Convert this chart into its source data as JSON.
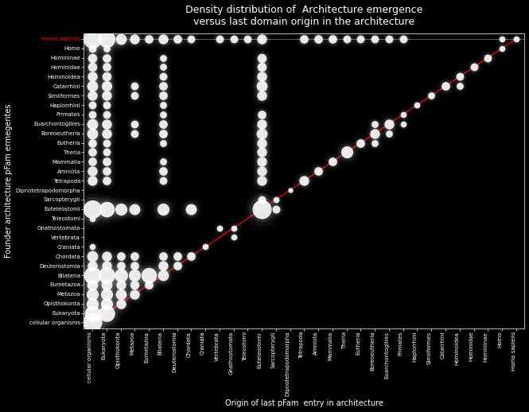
{
  "title": "Density distribution of  Architecture emergence\nversus last domain origin in the architecture",
  "xlabel": "Origin of last pFam  entry in architecture",
  "ylabel": "Founder architecture pFam ermegentes",
  "background_color": "#000000",
  "text_color": "#ffffff",
  "y_labels": [
    "Homo sapiens",
    "Homo",
    "Homininae",
    "Hominidae",
    "Hominoidea",
    "Catarrhini",
    "Simiiformes",
    "Haplorrhini",
    "Primates",
    "Euarchontoglires",
    "Boreoeutheria",
    "Eutheria",
    "Theria",
    "Mammalia",
    "Amniota",
    "Tetrapoda",
    "Dipnotetrapodomorpha",
    "Sarcopterygii",
    "Euteleostomi",
    "Teleostomi",
    "Gnathostomata",
    "Vertebrata",
    "Craniata",
    "Chordata",
    "Deuterostomia",
    "Bilateria",
    "Eumetazoa",
    "Metazoa",
    "Opisthokonta",
    "Eukaryota",
    "cellular organisms"
  ],
  "x_labels": [
    "cellular organisms",
    "Eukaryota",
    "Opisthokonta",
    "Metazoa",
    "Eumetazoa",
    "Bilateria",
    "Deuterostomia",
    "Chordata",
    "Craniata",
    "Vertebrata",
    "Gnathostomata",
    "Teleostomi",
    "Euteleostomi",
    "Sarcopterygii",
    "Dipnotetrapodomorpha",
    "Tetrapoda",
    "Amniota",
    "Mammalia",
    "Theria",
    "Eutheria",
    "Boreoeutheria",
    "Euarchontoglires",
    "Primates",
    "Haplorrhini",
    "Simiiformes",
    "Catarrhini",
    "Hominoidea",
    "Hominidae",
    "Homininae",
    "Homo",
    "Homo sapiens"
  ],
  "dots": [
    {
      "y": "cellular organisms",
      "x": "cellular organisms",
      "size": 300
    },
    {
      "y": "Eukaryota",
      "x": "cellular organisms",
      "size": 200
    },
    {
      "y": "Eukaryota",
      "x": "Eukaryota",
      "size": 220
    },
    {
      "y": "Opisthokonta",
      "x": "cellular organisms",
      "size": 120
    },
    {
      "y": "Opisthokonta",
      "x": "Eukaryota",
      "size": 120
    },
    {
      "y": "Opisthokonta",
      "x": "Opisthokonta",
      "size": 80
    },
    {
      "y": "Metazoa",
      "x": "cellular organisms",
      "size": 120
    },
    {
      "y": "Metazoa",
      "x": "Eukaryota",
      "size": 120
    },
    {
      "y": "Metazoa",
      "x": "Opisthokonta",
      "size": 100
    },
    {
      "y": "Metazoa",
      "x": "Metazoa",
      "size": 80
    },
    {
      "y": "Eumetazoa",
      "x": "cellular organisms",
      "size": 100
    },
    {
      "y": "Eumetazoa",
      "x": "Eukaryota",
      "size": 100
    },
    {
      "y": "Eumetazoa",
      "x": "Opisthokonta",
      "size": 80
    },
    {
      "y": "Eumetazoa",
      "x": "Metazoa",
      "size": 70
    },
    {
      "y": "Eumetazoa",
      "x": "Eumetazoa",
      "size": 60
    },
    {
      "y": "Bilateria",
      "x": "cellular organisms",
      "size": 250
    },
    {
      "y": "Bilateria",
      "x": "Eukaryota",
      "size": 230
    },
    {
      "y": "Bilateria",
      "x": "Opisthokonta",
      "size": 150
    },
    {
      "y": "Bilateria",
      "x": "Metazoa",
      "size": 120
    },
    {
      "y": "Bilateria",
      "x": "Eumetazoa",
      "size": 200
    },
    {
      "y": "Bilateria",
      "x": "Bilateria",
      "size": 100
    },
    {
      "y": "Deuterostomia",
      "x": "cellular organisms",
      "size": 80
    },
    {
      "y": "Deuterostomia",
      "x": "Eukaryota",
      "size": 80
    },
    {
      "y": "Deuterostomia",
      "x": "Opisthokonta",
      "size": 60
    },
    {
      "y": "Deuterostomia",
      "x": "Metazoa",
      "size": 60
    },
    {
      "y": "Deuterostomia",
      "x": "Bilateria",
      "size": 80
    },
    {
      "y": "Deuterostomia",
      "x": "Deuterostomia",
      "size": 60
    },
    {
      "y": "Chordata",
      "x": "cellular organisms",
      "size": 100
    },
    {
      "y": "Chordata",
      "x": "Eukaryota",
      "size": 80
    },
    {
      "y": "Chordata",
      "x": "Opisthokonta",
      "size": 60
    },
    {
      "y": "Chordata",
      "x": "Metazoa",
      "size": 60
    },
    {
      "y": "Chordata",
      "x": "Bilateria",
      "size": 60
    },
    {
      "y": "Chordata",
      "x": "Deuterostomia",
      "size": 60
    },
    {
      "y": "Chordata",
      "x": "Chordata",
      "size": 60
    },
    {
      "y": "Craniata",
      "x": "cellular organisms",
      "size": 30
    },
    {
      "y": "Craniata",
      "x": "Craniata",
      "size": 30
    },
    {
      "y": "Vertebrata",
      "x": "Gnathostomata",
      "size": 30
    },
    {
      "y": "Gnathostomata",
      "x": "Gnathostomata",
      "size": 30
    },
    {
      "y": "Gnathostomata",
      "x": "Vertebrata",
      "size": 30
    },
    {
      "y": "Teleostomi",
      "x": "cellular organisms",
      "size": 30
    },
    {
      "y": "Euteleostomi",
      "x": "cellular organisms",
      "size": 280
    },
    {
      "y": "Euteleostomi",
      "x": "Eukaryota",
      "size": 200
    },
    {
      "y": "Euteleostomi",
      "x": "Opisthokonta",
      "size": 120
    },
    {
      "y": "Euteleostomi",
      "x": "Metazoa",
      "size": 100
    },
    {
      "y": "Euteleostomi",
      "x": "Bilateria",
      "size": 120
    },
    {
      "y": "Euteleostomi",
      "x": "Chordata",
      "size": 100
    },
    {
      "y": "Euteleostomi",
      "x": "Euteleostomi",
      "size": 300
    },
    {
      "y": "Euteleostomi",
      "x": "Sarcopterygii",
      "size": 50
    },
    {
      "y": "Sarcopterygii",
      "x": "Euteleostomi",
      "size": 50
    },
    {
      "y": "Sarcopterygii",
      "x": "Sarcopterygii",
      "size": 30
    },
    {
      "y": "Dipnotetrapodomorpha",
      "x": "Dipnotetrapodomorpha",
      "size": 20
    },
    {
      "y": "Tetrapoda",
      "x": "cellular organisms",
      "size": 80
    },
    {
      "y": "Tetrapoda",
      "x": "Eukaryota",
      "size": 60
    },
    {
      "y": "Tetrapoda",
      "x": "Bilateria",
      "size": 50
    },
    {
      "y": "Tetrapoda",
      "x": "Euteleostomi",
      "size": 80
    },
    {
      "y": "Tetrapoda",
      "x": "Tetrapoda",
      "size": 80
    },
    {
      "y": "Amniota",
      "x": "cellular organisms",
      "size": 80
    },
    {
      "y": "Amniota",
      "x": "Eukaryota",
      "size": 60
    },
    {
      "y": "Amniota",
      "x": "Bilateria",
      "size": 60
    },
    {
      "y": "Amniota",
      "x": "Euteleostomi",
      "size": 80
    },
    {
      "y": "Amniota",
      "x": "Amniota",
      "size": 60
    },
    {
      "y": "Mammalia",
      "x": "cellular organisms",
      "size": 60
    },
    {
      "y": "Mammalia",
      "x": "Eukaryota",
      "size": 60
    },
    {
      "y": "Mammalia",
      "x": "Bilateria",
      "size": 40
    },
    {
      "y": "Mammalia",
      "x": "Euteleostomi",
      "size": 80
    },
    {
      "y": "Mammalia",
      "x": "Mammalia",
      "size": 60
    },
    {
      "y": "Theria",
      "x": "cellular organisms",
      "size": 60
    },
    {
      "y": "Theria",
      "x": "Eukaryota",
      "size": 50
    },
    {
      "y": "Theria",
      "x": "Euteleostomi",
      "size": 80
    },
    {
      "y": "Theria",
      "x": "Theria",
      "size": 120
    },
    {
      "y": "Eutheria",
      "x": "cellular organisms",
      "size": 60
    },
    {
      "y": "Eutheria",
      "x": "Eukaryota",
      "size": 50
    },
    {
      "y": "Eutheria",
      "x": "Bilateria",
      "size": 40
    },
    {
      "y": "Eutheria",
      "x": "Euteleostomi",
      "size": 80
    },
    {
      "y": "Eutheria",
      "x": "Eutheria",
      "size": 60
    },
    {
      "y": "Eutheria",
      "x": "Boreoeutheria",
      "size": 40
    },
    {
      "y": "Boreoeutheria",
      "x": "cellular organisms",
      "size": 100
    },
    {
      "y": "Boreoeutheria",
      "x": "Eukaryota",
      "size": 80
    },
    {
      "y": "Boreoeutheria",
      "x": "Metazoa",
      "size": 50
    },
    {
      "y": "Boreoeutheria",
      "x": "Bilateria",
      "size": 60
    },
    {
      "y": "Boreoeutheria",
      "x": "Euteleostomi",
      "size": 100
    },
    {
      "y": "Boreoeutheria",
      "x": "Boreoeutheria",
      "size": 80
    },
    {
      "y": "Boreoeutheria",
      "x": "Euarchontoglires",
      "size": 40
    },
    {
      "y": "Euarchontoglires",
      "x": "cellular organisms",
      "size": 100
    },
    {
      "y": "Euarchontoglires",
      "x": "Eukaryota",
      "size": 80
    },
    {
      "y": "Euarchontoglires",
      "x": "Metazoa",
      "size": 50
    },
    {
      "y": "Euarchontoglires",
      "x": "Bilateria",
      "size": 60
    },
    {
      "y": "Euarchontoglires",
      "x": "Euteleostomi",
      "size": 80
    },
    {
      "y": "Euarchontoglires",
      "x": "Euarchontoglires",
      "size": 80
    },
    {
      "y": "Euarchontoglires",
      "x": "Boreoeutheria",
      "size": 40
    },
    {
      "y": "Euarchontoglires",
      "x": "Primates",
      "size": 30
    },
    {
      "y": "Primates",
      "x": "cellular organisms",
      "size": 50
    },
    {
      "y": "Primates",
      "x": "Eukaryota",
      "size": 50
    },
    {
      "y": "Primates",
      "x": "Bilateria",
      "size": 40
    },
    {
      "y": "Primates",
      "x": "Euteleostomi",
      "size": 60
    },
    {
      "y": "Primates",
      "x": "Primates",
      "size": 30
    },
    {
      "y": "Haplorrhini",
      "x": "cellular organisms",
      "size": 50
    },
    {
      "y": "Haplorrhini",
      "x": "Eukaryota",
      "size": 50
    },
    {
      "y": "Haplorrhini",
      "x": "Bilateria",
      "size": 40
    },
    {
      "y": "Haplorrhini",
      "x": "Haplorrhini",
      "size": 30
    },
    {
      "y": "Simiiformes",
      "x": "cellular organisms",
      "size": 80
    },
    {
      "y": "Simiiformes",
      "x": "Eukaryota",
      "size": 80
    },
    {
      "y": "Simiiformes",
      "x": "Metazoa",
      "size": 50
    },
    {
      "y": "Simiiformes",
      "x": "Bilateria",
      "size": 60
    },
    {
      "y": "Simiiformes",
      "x": "Euteleostomi",
      "size": 80
    },
    {
      "y": "Simiiformes",
      "x": "Simiiformes",
      "size": 40
    },
    {
      "y": "Catarrhini",
      "x": "cellular organisms",
      "size": 100
    },
    {
      "y": "Catarrhini",
      "x": "Eukaryota",
      "size": 90
    },
    {
      "y": "Catarrhini",
      "x": "Metazoa",
      "size": 50
    },
    {
      "y": "Catarrhini",
      "x": "Bilateria",
      "size": 60
    },
    {
      "y": "Catarrhini",
      "x": "Euteleostomi",
      "size": 100
    },
    {
      "y": "Catarrhini",
      "x": "Catarrhini",
      "size": 60
    },
    {
      "y": "Catarrhini",
      "x": "Hominoidea",
      "size": 40
    },
    {
      "y": "Hominoidea",
      "x": "cellular organisms",
      "size": 80
    },
    {
      "y": "Hominoidea",
      "x": "Eukaryota",
      "size": 70
    },
    {
      "y": "Hominoidea",
      "x": "Bilateria",
      "size": 50
    },
    {
      "y": "Hominoidea",
      "x": "Euteleostomi",
      "size": 80
    },
    {
      "y": "Hominoidea",
      "x": "Hominoidea",
      "size": 50
    },
    {
      "y": "Hominidae",
      "x": "cellular organisms",
      "size": 70
    },
    {
      "y": "Hominidae",
      "x": "Eukaryota",
      "size": 60
    },
    {
      "y": "Hominidae",
      "x": "Bilateria",
      "size": 40
    },
    {
      "y": "Hominidae",
      "x": "Euteleostomi",
      "size": 70
    },
    {
      "y": "Hominidae",
      "x": "Hominidae",
      "size": 50
    },
    {
      "y": "Homininae",
      "x": "cellular organisms",
      "size": 70
    },
    {
      "y": "Homininae",
      "x": "Eukaryota",
      "size": 60
    },
    {
      "y": "Homininae",
      "x": "Bilateria",
      "size": 40
    },
    {
      "y": "Homininae",
      "x": "Euteleostomi",
      "size": 70
    },
    {
      "y": "Homininae",
      "x": "Homininae",
      "size": 50
    },
    {
      "y": "Homo",
      "x": "cellular organisms",
      "size": 50
    },
    {
      "y": "Homo",
      "x": "Eukaryota",
      "size": 40
    },
    {
      "y": "Homo",
      "x": "Homo",
      "size": 30
    },
    {
      "y": "Homo sapiens",
      "x": "cellular organisms",
      "size": 280
    },
    {
      "y": "Homo sapiens",
      "x": "Eukaryota",
      "size": 240
    },
    {
      "y": "Homo sapiens",
      "x": "Opisthokonta",
      "size": 100
    },
    {
      "y": "Homo sapiens",
      "x": "Metazoa",
      "size": 80
    },
    {
      "y": "Homo sapiens",
      "x": "Eumetazoa",
      "size": 60
    },
    {
      "y": "Homo sapiens",
      "x": "Bilateria",
      "size": 80
    },
    {
      "y": "Homo sapiens",
      "x": "Deuterostomia",
      "size": 60
    },
    {
      "y": "Homo sapiens",
      "x": "Chordata",
      "size": 50
    },
    {
      "y": "Homo sapiens",
      "x": "Vertebrata",
      "size": 50
    },
    {
      "y": "Homo sapiens",
      "x": "Gnathostomata",
      "size": 50
    },
    {
      "y": "Homo sapiens",
      "x": "Teleostomi",
      "size": 50
    },
    {
      "y": "Homo sapiens",
      "x": "Euteleostomi",
      "size": 80
    },
    {
      "y": "Homo sapiens",
      "x": "Tetrapoda",
      "size": 60
    },
    {
      "y": "Homo sapiens",
      "x": "Amniota",
      "size": 60
    },
    {
      "y": "Homo sapiens",
      "x": "Mammalia",
      "size": 60
    },
    {
      "y": "Homo sapiens",
      "x": "Theria",
      "size": 50
    },
    {
      "y": "Homo sapiens",
      "x": "Eutheria",
      "size": 50
    },
    {
      "y": "Homo sapiens",
      "x": "Boreoeutheria",
      "size": 50
    },
    {
      "y": "Homo sapiens",
      "x": "Euarchontoglires",
      "size": 50
    },
    {
      "y": "Homo sapiens",
      "x": "Primates",
      "size": 50
    },
    {
      "y": "Homo sapiens",
      "x": "Homo sapiens",
      "size": 30
    },
    {
      "y": "Homo sapiens",
      "x": "Homo",
      "size": 30
    }
  ]
}
